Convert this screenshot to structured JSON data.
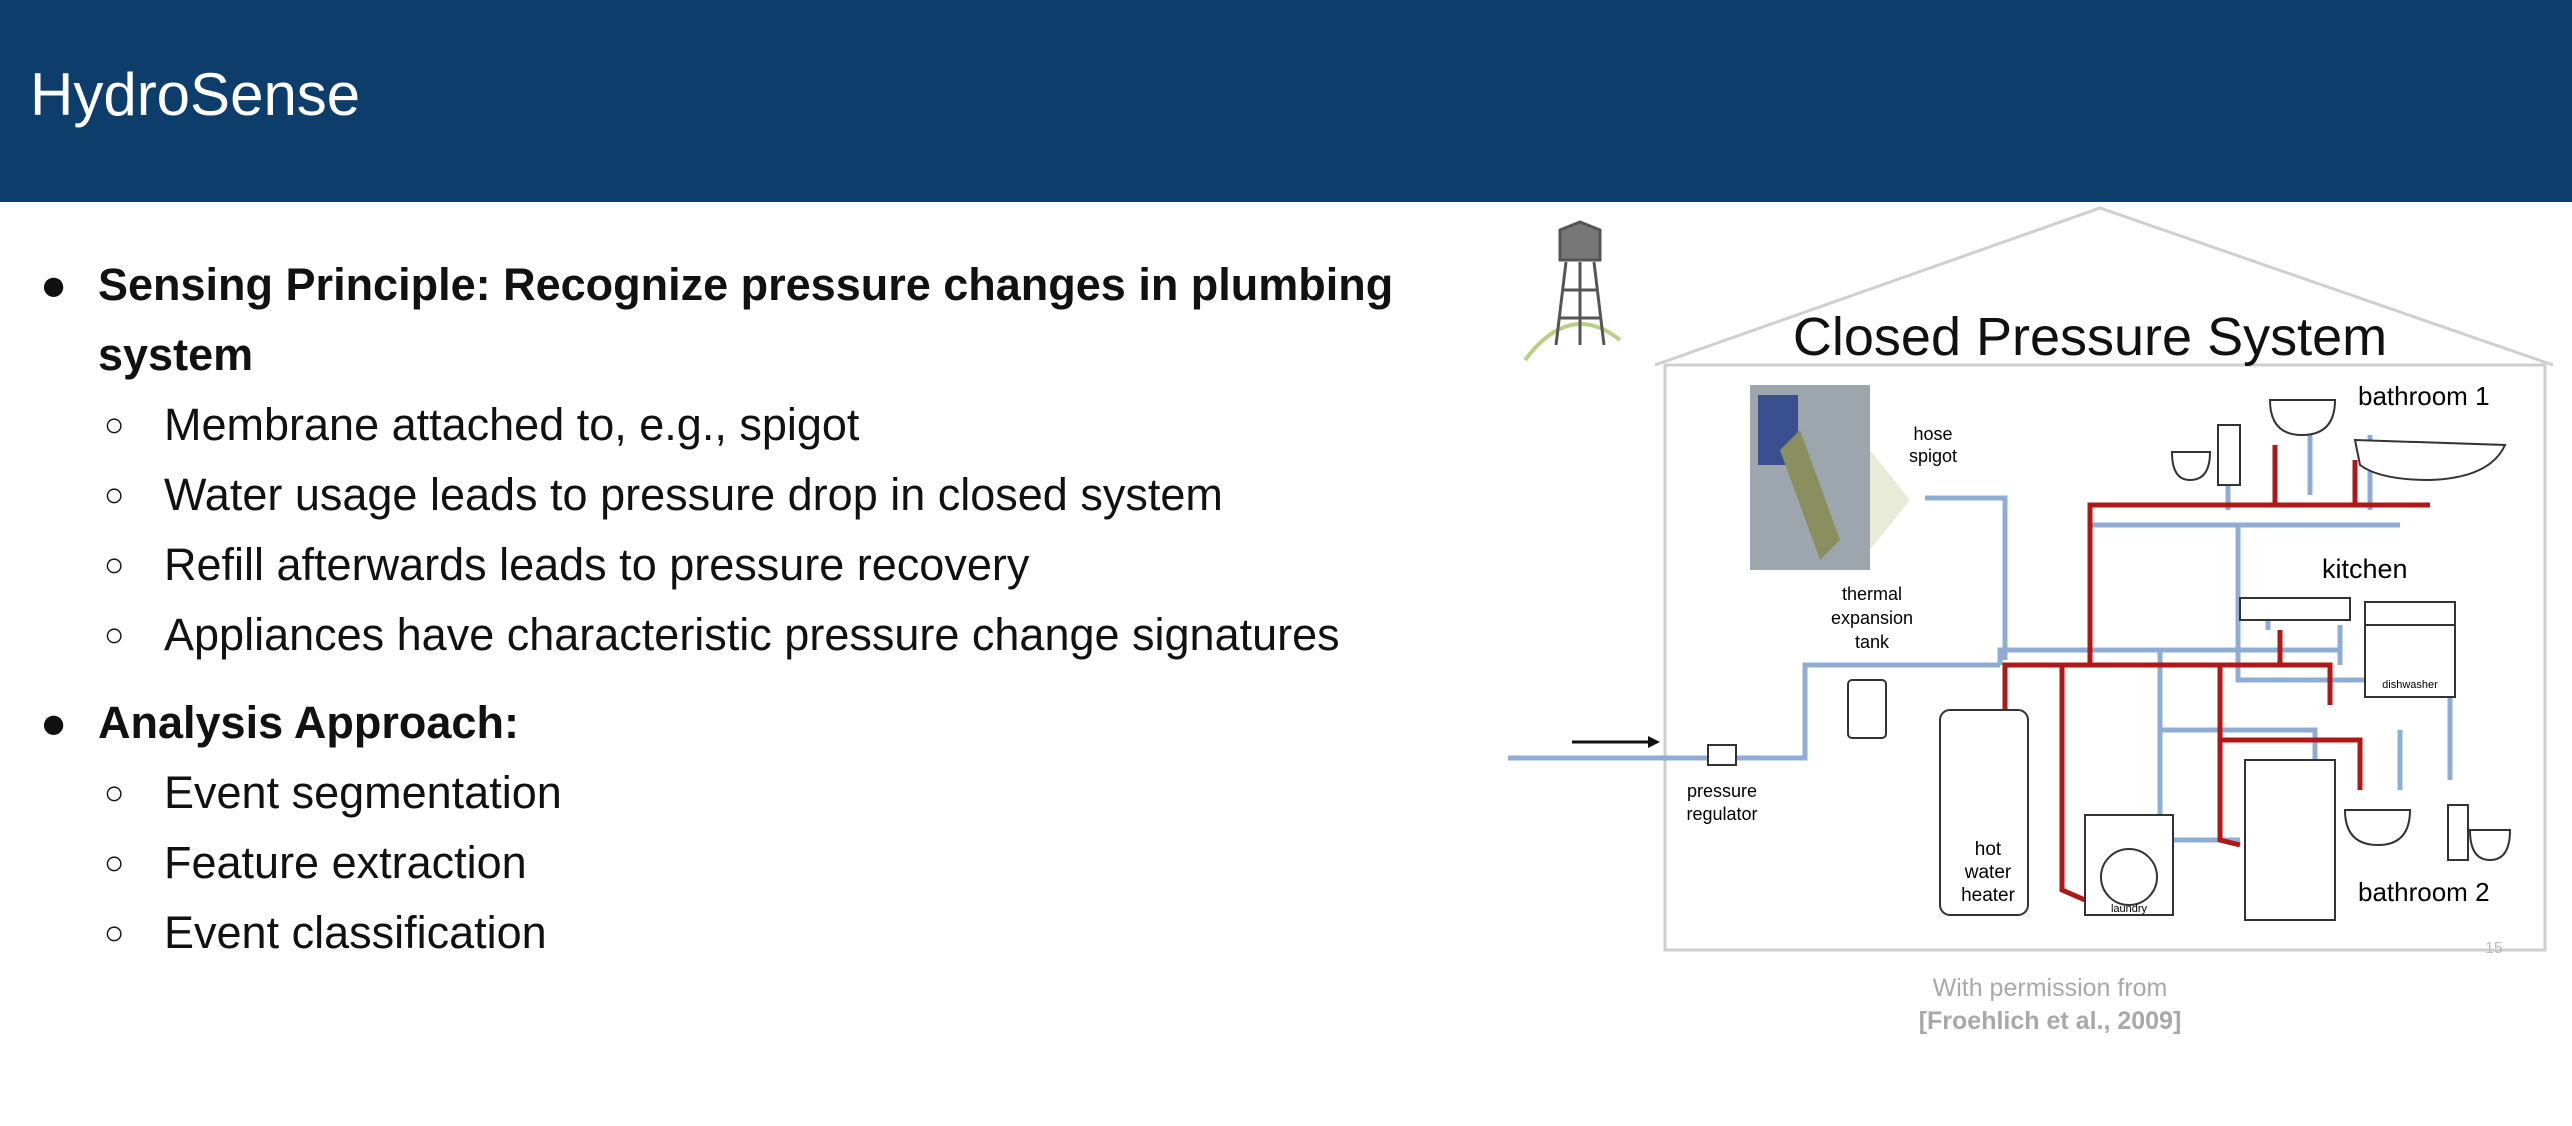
{
  "slide": {
    "title": "HydroSense",
    "page_number": "15"
  },
  "bullets": [
    {
      "text": "Sensing Principle: Recognize pressure changes in plumbing system",
      "subitems": [
        "Membrane attached to, e.g., spigot",
        "Water usage leads to pressure drop in closed system",
        "Refill afterwards leads to pressure recovery",
        "Appliances have characteristic pressure change signatures"
      ]
    },
    {
      "text": "Analysis Approach:",
      "subitems": [
        "Event segmentation",
        "Feature extraction",
        "Event classification"
      ]
    }
  ],
  "diagram": {
    "title": "Closed Pressure System",
    "labels": {
      "hose": "hose",
      "spigot": "spigot",
      "thermal": "thermal",
      "expansion": "expansion",
      "tank": "tank",
      "pressure": "pressure",
      "regulator": "regulator",
      "hot": "hot",
      "water": "water",
      "heater": "heater",
      "laundry": "laundry",
      "dishwasher": "dishwasher",
      "bathroom1": "bathroom 1",
      "kitchen": "kitchen",
      "bathroom2": "bathroom 2"
    },
    "colors": {
      "cold_pipe": "#8fadd4",
      "hot_pipe": "#b01717"
    }
  },
  "caption": {
    "line1": "With permission from",
    "line2": "[Froehlich et al., 2009]"
  },
  "colors": {
    "header_bg": "#0c3d6b",
    "caption_text": "#a8a8a8"
  }
}
